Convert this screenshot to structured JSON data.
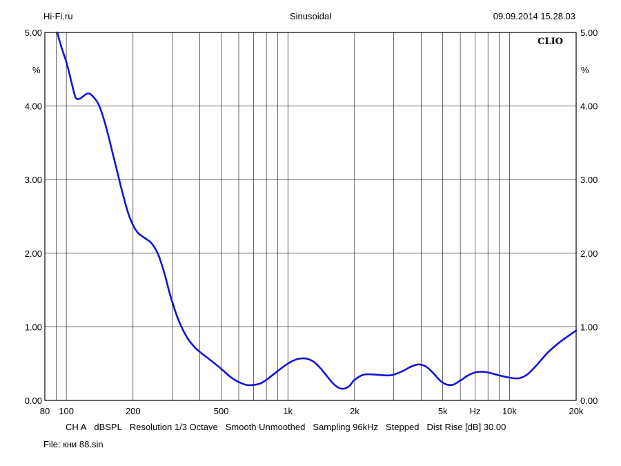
{
  "header": {
    "left": "Hi-Fi.ru",
    "center": "Sinusoidal",
    "right": "09.09.2014 15.28.03"
  },
  "brand": "CLIO",
  "footer": {
    "settings": [
      "CH A",
      "dBSPL",
      "Resolution 1/3 Octave",
      "Smooth Unmoothed",
      "Sampling 96kHz",
      "Stepped",
      "Dist Rise [dB] 30.00"
    ],
    "file_label": "File:",
    "file_name": "кни 88.sin"
  },
  "chart_data": {
    "type": "line",
    "title": "",
    "xscale": "log",
    "xlim": [
      80,
      20000
    ],
    "ylim": [
      0,
      5
    ],
    "x_tick_labels": [
      {
        "value": 80,
        "label": "80"
      },
      {
        "value": 100,
        "label": "100"
      },
      {
        "value": 200,
        "label": "200"
      },
      {
        "value": 500,
        "label": "500"
      },
      {
        "value": 1000,
        "label": "1k"
      },
      {
        "value": 2000,
        "label": "2k"
      },
      {
        "value": 5000,
        "label": "5k"
      },
      {
        "value": 7000,
        "label": "Hz"
      },
      {
        "value": 10000,
        "label": "10k"
      },
      {
        "value": 20000,
        "label": "20k"
      }
    ],
    "x_gridlines": [
      80,
      90,
      100,
      200,
      300,
      400,
      500,
      600,
      700,
      800,
      900,
      1000,
      2000,
      3000,
      4000,
      5000,
      6000,
      7000,
      8000,
      9000,
      10000,
      20000
    ],
    "y_ticks": [
      0,
      1,
      2,
      3,
      4,
      5
    ],
    "y_tick_labels": [
      "0.00",
      "1.00",
      "2.00",
      "3.00",
      "4.00",
      "5.00"
    ],
    "y_unit": "%",
    "grid": true,
    "series_color": "#1414d2",
    "series": [
      {
        "x": [
          91,
          95,
          100,
          105,
          110,
          115,
          120,
          125,
          130,
          140,
          150,
          160,
          170,
          180,
          190,
          200,
          210,
          220,
          230,
          240,
          250,
          260,
          270,
          280,
          290,
          300,
          320,
          350,
          380,
          400,
          450,
          500,
          550,
          600,
          650,
          700,
          750,
          800,
          900,
          1000,
          1100,
          1200,
          1300,
          1400,
          1500,
          1600,
          1700,
          1800,
          1900,
          2000,
          2200,
          2500,
          2800,
          3000,
          3300,
          3600,
          3900,
          4200,
          4500,
          5000,
          5500,
          6000,
          6500,
          7000,
          7500,
          8000,
          9000,
          10000,
          11000,
          12000,
          13000,
          14000,
          15000,
          17000,
          20000
        ],
        "y": [
          5.0,
          4.8,
          4.6,
          4.35,
          4.12,
          4.1,
          4.14,
          4.17,
          4.15,
          4.02,
          3.75,
          3.42,
          3.1,
          2.8,
          2.55,
          2.38,
          2.28,
          2.23,
          2.19,
          2.15,
          2.08,
          1.98,
          1.84,
          1.68,
          1.5,
          1.35,
          1.1,
          0.86,
          0.72,
          0.66,
          0.54,
          0.43,
          0.32,
          0.25,
          0.21,
          0.21,
          0.23,
          0.28,
          0.4,
          0.5,
          0.56,
          0.57,
          0.53,
          0.44,
          0.33,
          0.23,
          0.17,
          0.16,
          0.2,
          0.28,
          0.35,
          0.35,
          0.34,
          0.35,
          0.4,
          0.46,
          0.49,
          0.46,
          0.38,
          0.24,
          0.21,
          0.27,
          0.34,
          0.38,
          0.39,
          0.38,
          0.34,
          0.31,
          0.3,
          0.35,
          0.45,
          0.56,
          0.66,
          0.8,
          0.95
        ]
      }
    ]
  }
}
